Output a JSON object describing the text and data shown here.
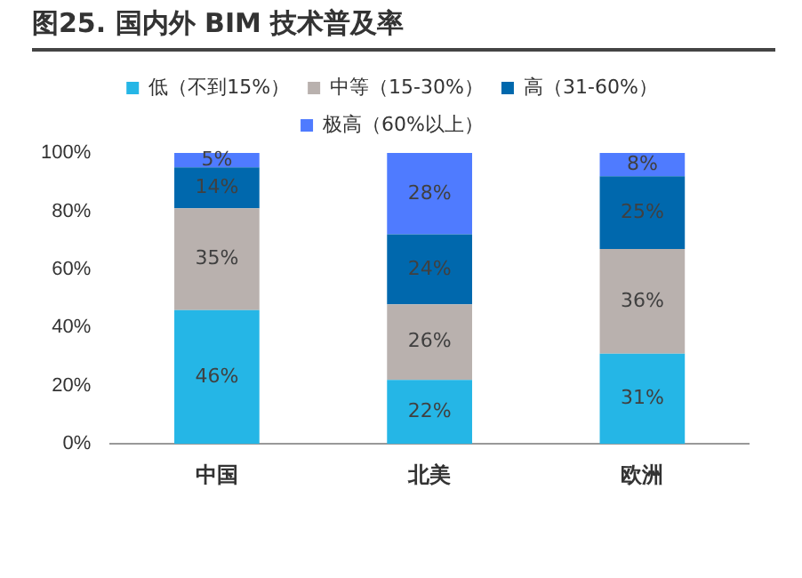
{
  "chart_data": {
    "type": "bar",
    "title": "图25. 国内外 BIM 技术普及率",
    "categories": [
      "中国",
      "北美",
      "欧洲"
    ],
    "stacked": true,
    "series": [
      {
        "name": "低（不到15%）",
        "color": "#25b6e6",
        "values": [
          46,
          22,
          31
        ],
        "value_labels": [
          "46%",
          "22%",
          "31%"
        ]
      },
      {
        "name": "中等（15-30%）",
        "color": "#b9b1ae",
        "values": [
          35,
          26,
          36
        ],
        "value_labels": [
          "35%",
          "26%",
          "36%"
        ]
      },
      {
        "name": "高（31-60%）",
        "color": "#0068ad",
        "values": [
          14,
          24,
          25
        ],
        "value_labels": [
          "14%",
          "24%",
          "25%"
        ]
      },
      {
        "name": "极高（60%以上）",
        "color": "#4f7bff",
        "values": [
          5,
          28,
          8
        ],
        "value_labels": [
          "5%",
          "28%",
          "8%"
        ]
      }
    ],
    "ylim": [
      0,
      100
    ],
    "yticks": [
      {
        "value": 0,
        "label": "0%"
      },
      {
        "value": 20,
        "label": "20%"
      },
      {
        "value": 40,
        "label": "40%"
      },
      {
        "value": 60,
        "label": "60%"
      },
      {
        "value": 80,
        "label": "80%"
      },
      {
        "value": 100,
        "label": "100%"
      }
    ],
    "grid": false,
    "legend": "top"
  }
}
